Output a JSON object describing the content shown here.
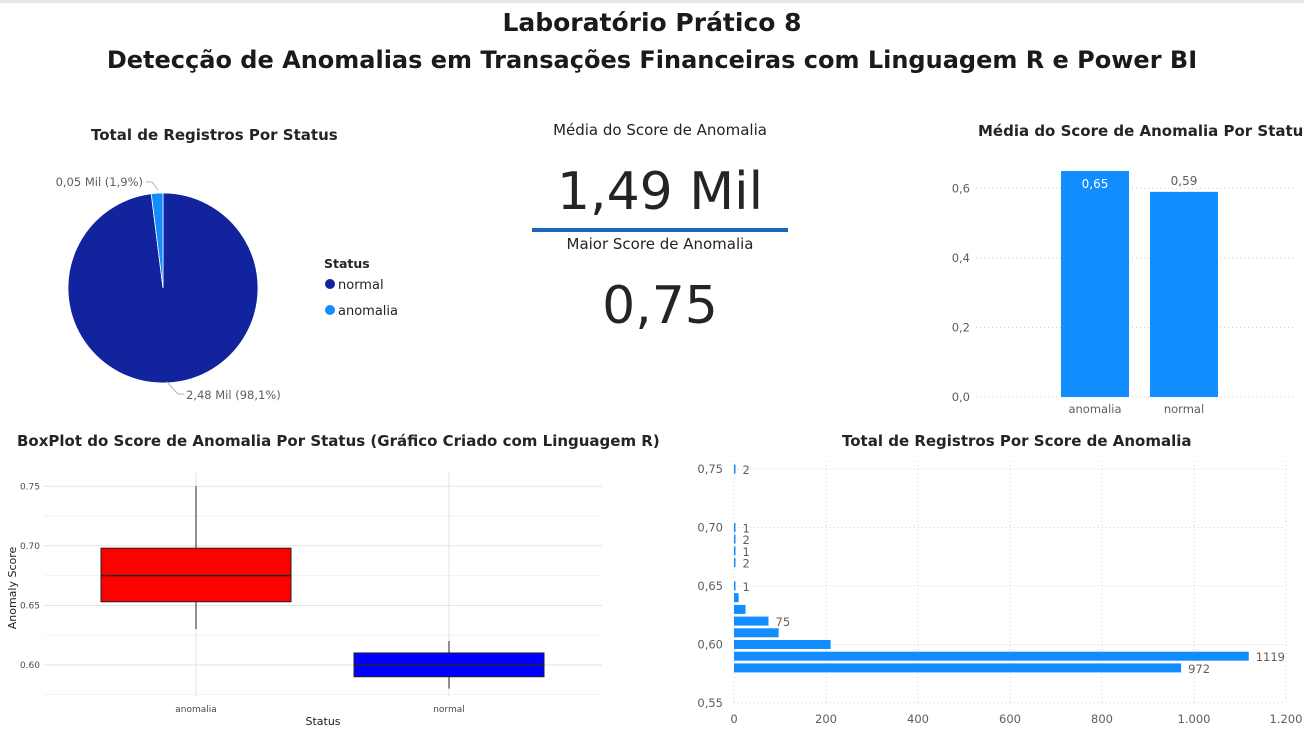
{
  "header": {
    "title_line1": "Laboratório Prático 8",
    "title_line2": "Detecção de Anomalias em Transações Financeiras com Linguagem R e Power BI"
  },
  "cards": {
    "mean_label": "Média do Score de Anomalia",
    "mean_value": "1,49 Mil",
    "max_label": "Maior Score de Anomalia",
    "max_value": "0,75"
  },
  "colors": {
    "normal": "#12239e",
    "anomalia": "#118dff",
    "box_anomalia": "#ff0000",
    "box_normal": "#0000ff",
    "card_bar": "#1a6ab4"
  },
  "chart_data": [
    {
      "id": "pie",
      "type": "pie",
      "title": "Total de Registros Por Status",
      "legend_title": "Status",
      "legend_position": "right",
      "slices": [
        {
          "name": "normal",
          "value": 2.48,
          "percent": 98.1,
          "label": "2,48 Mil (98,1%)"
        },
        {
          "name": "anomalia",
          "value": 0.05,
          "percent": 1.9,
          "label": "0,05 Mil (1,9%)"
        }
      ]
    },
    {
      "id": "mean_bar",
      "type": "bar",
      "title": "Média do Score de Anomalia Por Status",
      "categories": [
        "anomalia",
        "normal"
      ],
      "values": [
        0.65,
        0.59
      ],
      "value_labels": [
        "0,65",
        "0,59"
      ],
      "ylim": [
        0,
        0.65
      ],
      "yticks": [
        "0,0",
        "0,2",
        "0,4",
        "0,6"
      ],
      "grid": true
    },
    {
      "id": "boxplot",
      "type": "boxplot",
      "title": "BoxPlot do Score de Anomalia Por Status (Gráfico Criado com Linguagem R)",
      "xlabel": "Status",
      "ylabel": "Anomaly Score",
      "yticks": [
        "0.60",
        "0.65",
        "0.70",
        "0.75"
      ],
      "ylim": [
        0.573,
        0.762
      ],
      "boxes": [
        {
          "name": "anomalia",
          "min": 0.63,
          "q1": 0.653,
          "median": 0.675,
          "q3": 0.698,
          "max": 0.75
        },
        {
          "name": "normal",
          "min": 0.58,
          "q1": 0.59,
          "median": 0.6,
          "q3": 0.61,
          "max": 0.62
        }
      ],
      "grid": true
    },
    {
      "id": "hbar",
      "type": "bar",
      "orientation": "horizontal",
      "title": "Total de Registros Por Score de Anomalia",
      "bars": [
        {
          "y": 0.58,
          "value": 972,
          "label": "972"
        },
        {
          "y": 0.59,
          "value": 1119,
          "label": "1119"
        },
        {
          "y": 0.6,
          "value": 210,
          "label": ""
        },
        {
          "y": 0.61,
          "value": 97,
          "label": ""
        },
        {
          "y": 0.62,
          "value": 75,
          "label": "75"
        },
        {
          "y": 0.63,
          "value": 25,
          "label": ""
        },
        {
          "y": 0.64,
          "value": 10,
          "label": ""
        },
        {
          "y": 0.65,
          "value": 1,
          "label": "1"
        },
        {
          "y": 0.67,
          "value": 2,
          "label": "2"
        },
        {
          "y": 0.68,
          "value": 1,
          "label": "1"
        },
        {
          "y": 0.69,
          "value": 2,
          "label": "2"
        },
        {
          "y": 0.7,
          "value": 1,
          "label": "1"
        },
        {
          "y": 0.75,
          "value": 2,
          "label": "2"
        }
      ],
      "xticks": [
        "0",
        "200",
        "400",
        "600",
        "800",
        "1.000",
        "1.200"
      ],
      "xlim": [
        0,
        1200
      ],
      "yticks": [
        "0,55",
        "0,60",
        "0,65",
        "0,70",
        "0,75"
      ],
      "ylim": [
        0.55,
        0.75
      ],
      "grid": true
    }
  ]
}
